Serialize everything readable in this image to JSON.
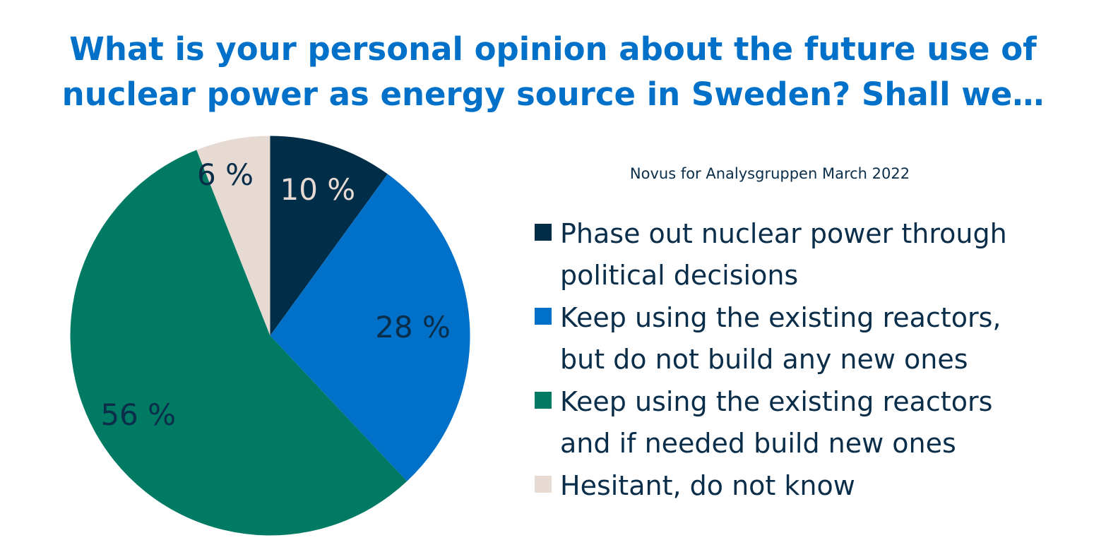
{
  "title": {
    "line1": "What is your personal opinion about the future use of",
    "line2": "nuclear power as energy source in Sweden? Shall we…"
  },
  "source": "Novus for Analysgruppen March 2022",
  "chart_data": {
    "type": "pie",
    "title": "What is your personal opinion about the future use of nuclear power as energy source in Sweden? Shall we…",
    "start": "12 o'clock, clockwise",
    "legend_position": "right",
    "slices": [
      {
        "name": "Phase out nuclear power through political decisions",
        "value": 10,
        "label": "10 %",
        "color": "#002D47",
        "label_color": "#E6DAD3"
      },
      {
        "name": "Keep using the existing reactors, but do not build any new ones",
        "value": 28,
        "label": "28 %",
        "color": "#0070C8",
        "label_color": "#0A2E4A"
      },
      {
        "name": "Keep using the existing reactors and if needed build new ones",
        "value": 56,
        "label": "56 %",
        "color": "#007A63",
        "label_color": "#0A2E4A"
      },
      {
        "name": "Hesitant, do not know",
        "value": 6,
        "label": "6 %",
        "color": "#E6DAD3",
        "label_color": "#0A2E4A"
      }
    ]
  },
  "legend": [
    {
      "line1": "Phase out nuclear power through",
      "line2": "political decisions",
      "color": "#002D47"
    },
    {
      "line1": "Keep using the existing reactors,",
      "line2": "but do not build any new ones",
      "color": "#0070C8"
    },
    {
      "line1": "Keep using the existing reactors",
      "line2": "and if needed build new ones",
      "color": "#007A63"
    },
    {
      "line1": "Hesitant, do not know",
      "line2": "",
      "color": "#E6DAD3"
    }
  ]
}
